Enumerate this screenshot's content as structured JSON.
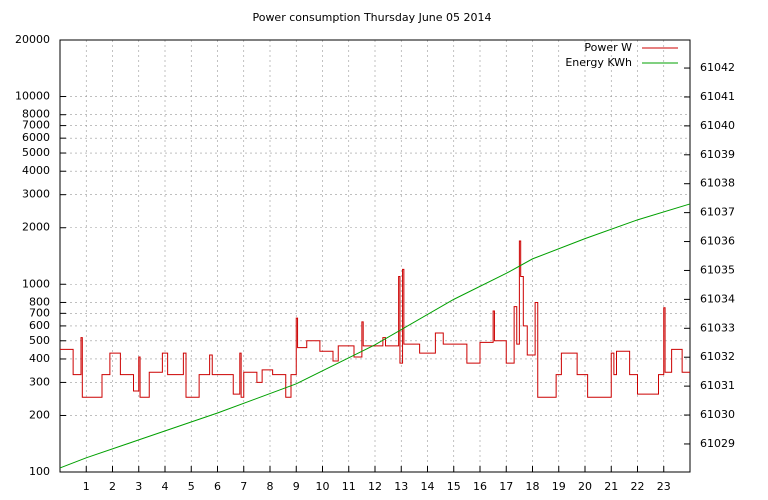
{
  "chart_data": {
    "type": "line",
    "title": "Power consumption Thursday June 05 2014",
    "xlim": [
      0,
      24
    ],
    "xticks": [
      1,
      2,
      3,
      4,
      5,
      6,
      7,
      8,
      9,
      10,
      11,
      12,
      13,
      14,
      15,
      16,
      17,
      18,
      19,
      20,
      21,
      22,
      23
    ],
    "ylim": [
      100,
      20000
    ],
    "yscale": "log",
    "yticks": [
      100,
      200,
      300,
      400,
      500,
      600,
      700,
      800,
      1000,
      2000,
      3000,
      4000,
      5000,
      6000,
      7000,
      8000,
      10000,
      20000
    ],
    "y2lim": [
      61028.03,
      61042.97
    ],
    "y2ticks": [
      61029,
      61030,
      61031,
      61032,
      61033,
      61034,
      61035,
      61036,
      61037,
      61038,
      61039,
      61040,
      61041,
      61042
    ],
    "grid": true,
    "legend": "top-right",
    "series": [
      {
        "name": "Power W",
        "color": "#cc0000",
        "x": [
          0,
          0.5,
          0.5,
          0.8,
          0.8,
          0.85,
          0.85,
          1.6,
          1.6,
          1.9,
          1.9,
          2.3,
          2.3,
          2.8,
          2.8,
          3.0,
          3.0,
          3.05,
          3.05,
          3.4,
          3.4,
          3.9,
          3.9,
          4.1,
          4.1,
          4.7,
          4.7,
          4.8,
          4.8,
          5.3,
          5.3,
          5.7,
          5.7,
          5.8,
          5.8,
          6.6,
          6.6,
          6.85,
          6.85,
          6.9,
          6.9,
          7.0,
          7.0,
          7.5,
          7.5,
          7.7,
          7.7,
          8.1,
          8.1,
          8.6,
          8.6,
          8.8,
          8.8,
          9.0,
          9.0,
          9.05,
          9.05,
          9.4,
          9.4,
          9.9,
          9.9,
          10.4,
          10.4,
          10.6,
          10.6,
          11.2,
          11.2,
          11.5,
          11.5,
          11.55,
          11.55,
          12.3,
          12.3,
          12.4,
          12.4,
          12.9,
          12.9,
          12.95,
          12.95,
          13.05,
          13.05,
          13.1,
          13.1,
          13.7,
          13.7,
          14.3,
          14.3,
          14.6,
          14.6,
          15.5,
          15.5,
          16.0,
          16.0,
          16.5,
          16.5,
          16.55,
          16.55,
          17.0,
          17.0,
          17.3,
          17.3,
          17.4,
          17.4,
          17.5,
          17.5,
          17.55,
          17.55,
          17.65,
          17.65,
          17.8,
          17.8,
          18.1,
          18.1,
          18.2,
          18.2,
          18.9,
          18.9,
          19.1,
          19.1,
          19.7,
          19.7,
          20.1,
          20.1,
          21.0,
          21.0,
          21.1,
          21.1,
          21.2,
          21.2,
          21.7,
          21.7,
          22.0,
          22.0,
          22.8,
          22.8,
          23.0,
          23.0,
          23.05,
          23.05,
          23.3,
          23.3,
          23.7,
          23.7,
          24
        ],
        "values": [
          450,
          450,
          330,
          330,
          520,
          520,
          250,
          250,
          330,
          330,
          430,
          430,
          330,
          330,
          270,
          270,
          410,
          410,
          250,
          250,
          340,
          340,
          430,
          430,
          330,
          330,
          430,
          430,
          250,
          250,
          330,
          330,
          420,
          420,
          330,
          330,
          260,
          260,
          430,
          430,
          250,
          250,
          340,
          340,
          300,
          300,
          350,
          350,
          330,
          330,
          250,
          250,
          330,
          330,
          660,
          660,
          460,
          460,
          500,
          500,
          440,
          440,
          390,
          390,
          470,
          470,
          410,
          410,
          630,
          630,
          470,
          470,
          520,
          520,
          470,
          470,
          1100,
          1100,
          380,
          380,
          1200,
          1200,
          480,
          480,
          430,
          430,
          550,
          550,
          480,
          480,
          380,
          380,
          490,
          490,
          720,
          720,
          500,
          500,
          380,
          380,
          760,
          760,
          480,
          480,
          1700,
          1700,
          1100,
          1100,
          600,
          600,
          420,
          420,
          800,
          800,
          250,
          250,
          330,
          330,
          430,
          430,
          330,
          330,
          250,
          250,
          430,
          430,
          330,
          330,
          440,
          440,
          330,
          330,
          260,
          260,
          330,
          330,
          750,
          750,
          340,
          340,
          450,
          450,
          340,
          340
        ]
      },
      {
        "name": "Energy KWh",
        "color": "#00a000",
        "axis": "y2",
        "x": [
          0,
          1,
          3,
          6,
          9,
          12,
          15,
          17,
          18,
          20,
          22,
          24
        ],
        "values": [
          61028.17,
          61028.52,
          61029.14,
          61030.07,
          61031.08,
          61032.43,
          61034.0,
          61034.9,
          61035.4,
          61036.1,
          61036.75,
          61037.3
        ]
      }
    ]
  }
}
